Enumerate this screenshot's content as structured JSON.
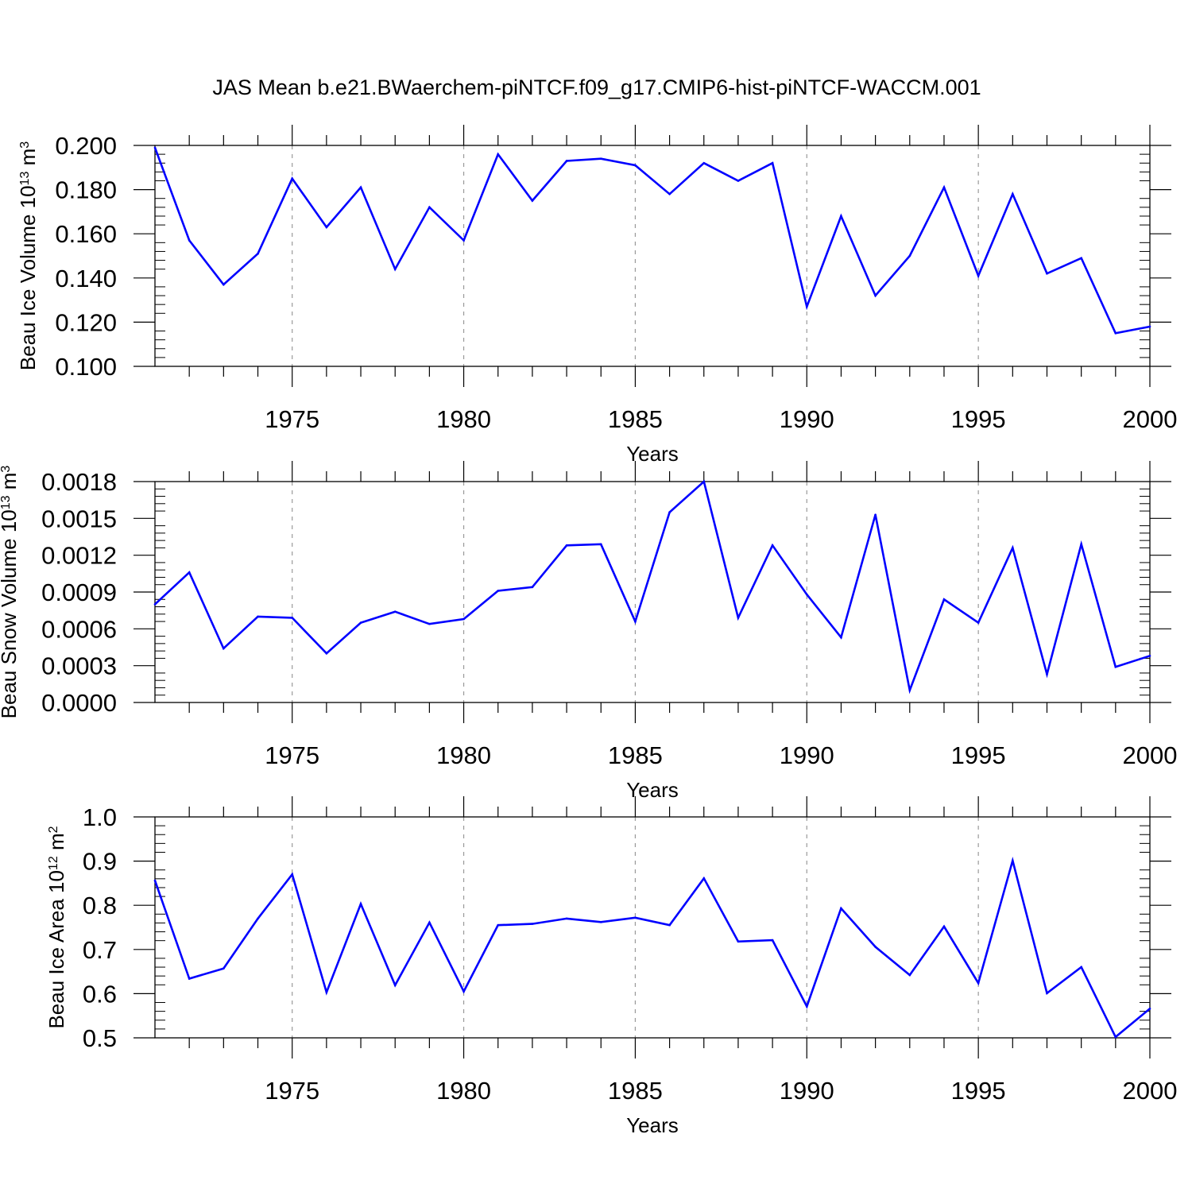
{
  "title": "JAS Mean b.e21.BWaerchem-piNTCF.f09_g17.CMIP6-hist-piNTCF-WACCM.001",
  "colors": {
    "series": "#0000ff",
    "axis": "#000000",
    "grid": "#999999"
  },
  "chart_data": [
    {
      "type": "line",
      "ylabel_main": "Beau Ice Volume 10",
      "ylabel_sup": "13",
      "ylabel_unit": "m",
      "ylabel_unit_sup": "3",
      "xlabel": "Years",
      "xlim": [
        1971,
        2000
      ],
      "ylim": [
        0.1,
        0.2
      ],
      "yticks": [
        0.1,
        0.12,
        0.14,
        0.16,
        0.18,
        0.2
      ],
      "ytick_labels": [
        "0.100",
        "0.120",
        "0.140",
        "0.160",
        "0.180",
        "0.200"
      ],
      "xticks": [
        1975,
        1980,
        1985,
        1990,
        1995,
        2000
      ],
      "xtick_labels": [
        "1975",
        "1980",
        "1985",
        "1990",
        "1995",
        "2000"
      ],
      "x": [
        1971,
        1972,
        1973,
        1974,
        1975,
        1976,
        1977,
        1978,
        1979,
        1980,
        1981,
        1982,
        1983,
        1984,
        1985,
        1986,
        1987,
        1988,
        1989,
        1990,
        1991,
        1992,
        1993,
        1994,
        1995,
        1996,
        1997,
        1998,
        1999,
        2000
      ],
      "values": [
        0.199,
        0.157,
        0.137,
        0.151,
        0.185,
        0.163,
        0.181,
        0.144,
        0.172,
        0.157,
        0.196,
        0.175,
        0.193,
        0.194,
        0.191,
        0.178,
        0.192,
        0.184,
        0.192,
        0.127,
        0.168,
        0.132,
        0.15,
        0.181,
        0.141,
        0.178,
        0.142,
        0.149,
        0.115,
        0.118
      ]
    },
    {
      "type": "line",
      "ylabel_main": "Beau Snow Volume 10",
      "ylabel_sup": "13",
      "ylabel_unit": "m",
      "ylabel_unit_sup": "3",
      "xlabel": "Years",
      "xlim": [
        1971,
        2000
      ],
      "ylim": [
        0.0,
        0.0018
      ],
      "yticks": [
        0.0,
        0.0003,
        0.0006,
        0.0009,
        0.0012,
        0.0015,
        0.0018
      ],
      "ytick_labels": [
        "0.0000",
        "0.0003",
        "0.0006",
        "0.0009",
        "0.0012",
        "0.0015",
        "0.0018"
      ],
      "xticks": [
        1975,
        1980,
        1985,
        1990,
        1995,
        2000
      ],
      "xtick_labels": [
        "1975",
        "1980",
        "1985",
        "1990",
        "1995",
        "2000"
      ],
      "x": [
        1971,
        1972,
        1973,
        1974,
        1975,
        1976,
        1977,
        1978,
        1979,
        1980,
        1981,
        1982,
        1983,
        1984,
        1985,
        1986,
        1987,
        1988,
        1989,
        1990,
        1991,
        1992,
        1993,
        1994,
        1995,
        1996,
        1997,
        1998,
        1999,
        2000
      ],
      "values": [
        0.0008,
        0.00106,
        0.00044,
        0.0007,
        0.00069,
        0.0004,
        0.00065,
        0.00074,
        0.00064,
        0.00068,
        0.00091,
        0.00094,
        0.00128,
        0.00129,
        0.00066,
        0.00155,
        0.0018,
        0.00069,
        0.00128,
        0.00088,
        0.00053,
        0.00153,
        0.0001,
        0.00084,
        0.00065,
        0.00126,
        0.00023,
        0.00129,
        0.00029,
        0.00038
      ]
    },
    {
      "type": "line",
      "ylabel_main": "Beau Ice Area 10",
      "ylabel_sup": "12",
      "ylabel_unit": "m",
      "ylabel_unit_sup": "2",
      "xlabel": "Years",
      "xlim": [
        1971,
        2000
      ],
      "ylim": [
        0.5,
        1.0
      ],
      "yticks": [
        0.5,
        0.6,
        0.7,
        0.8,
        0.9,
        1.0
      ],
      "ytick_labels": [
        "0.5",
        "0.6",
        "0.7",
        "0.8",
        "0.9",
        "1.0"
      ],
      "xticks": [
        1975,
        1980,
        1985,
        1990,
        1995,
        2000
      ],
      "xtick_labels": [
        "1975",
        "1980",
        "1985",
        "1990",
        "1995",
        "2000"
      ],
      "x": [
        1971,
        1972,
        1973,
        1974,
        1975,
        1976,
        1977,
        1978,
        1979,
        1980,
        1981,
        1982,
        1983,
        1984,
        1985,
        1986,
        1987,
        1988,
        1989,
        1990,
        1991,
        1992,
        1993,
        1994,
        1995,
        1996,
        1997,
        1998,
        1999,
        2000
      ],
      "values": [
        0.856,
        0.634,
        0.657,
        0.77,
        0.87,
        0.603,
        0.803,
        0.619,
        0.761,
        0.605,
        0.755,
        0.758,
        0.77,
        0.762,
        0.772,
        0.755,
        0.861,
        0.718,
        0.721,
        0.571,
        0.793,
        0.706,
        0.642,
        0.752,
        0.624,
        0.901,
        0.601,
        0.66,
        0.502,
        0.566
      ]
    }
  ]
}
